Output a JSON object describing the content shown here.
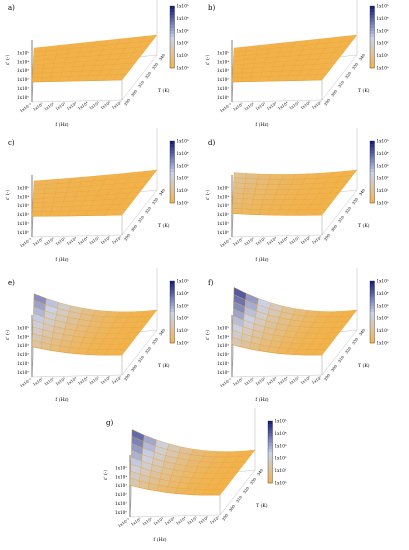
{
  "figure": {
    "palette": {
      "low": "#f2b24a",
      "mid": "#c9d2e8",
      "high": "#1a237e",
      "grid": "#e8a23a",
      "edge": "#555555"
    }
  },
  "chart_data": [
    {
      "type": "surface3d",
      "panel_label": "a)",
      "xlabel": "f (Hz)",
      "ylabel": "T (K)",
      "zlabel": "ε' (-)",
      "x_ticks": [
        "1x10⁻¹",
        "1x10⁰",
        "1x10¹",
        "1x10²",
        "1x10³",
        "1x10⁴",
        "1x10⁵",
        "1x10⁶",
        "1x10⁷"
      ],
      "y_ticks": [
        "290",
        "300",
        "310",
        "320",
        "330",
        "340"
      ],
      "z_ticks": [
        "1x10⁰",
        "1x10¹",
        "1x10²",
        "1x10³",
        "1x10⁴",
        "1x10⁵"
      ],
      "colorbar_ticks": [
        "1x10⁰",
        "1x10¹",
        "1x10²",
        "1x10³",
        "1x10⁴",
        "1x10⁵"
      ],
      "z_scale": "log",
      "surface_peak_level": 0.0
    },
    {
      "type": "surface3d",
      "panel_label": "b)",
      "xlabel": "f (Hz)",
      "ylabel": "T (K)",
      "zlabel": "ε' (-)",
      "x_ticks": [
        "1x10⁻¹",
        "1x10⁰",
        "1x10¹",
        "1x10²",
        "1x10³",
        "1x10⁴",
        "1x10⁵",
        "1x10⁶",
        "1x10⁷"
      ],
      "y_ticks": [
        "290",
        "300",
        "310",
        "320",
        "330",
        "340"
      ],
      "z_ticks": [
        "1x10⁰",
        "1x10¹",
        "1x10²",
        "1x10³",
        "1x10⁴",
        "1x10⁵"
      ],
      "colorbar_ticks": [
        "1x10⁰",
        "1x10¹",
        "1x10²",
        "1x10³",
        "1x10⁴",
        "1x10⁵"
      ],
      "z_scale": "log",
      "surface_peak_level": 0.0
    },
    {
      "type": "surface3d",
      "panel_label": "c)",
      "xlabel": "f (Hz)",
      "ylabel": "T (K)",
      "zlabel": "ε' (-)",
      "x_ticks": [
        "1x10⁻¹",
        "1x10⁰",
        "1x10¹",
        "1x10²",
        "1x10³",
        "1x10⁴",
        "1x10⁵",
        "1x10⁶",
        "1x10⁷"
      ],
      "y_ticks": [
        "290",
        "300",
        "310",
        "320",
        "330",
        "340"
      ],
      "z_ticks": [
        "1x10⁰",
        "1x10¹",
        "1x10²",
        "1x10³",
        "1x10⁴",
        "1x10⁵"
      ],
      "colorbar_ticks": [
        "1x10⁰",
        "1x10¹",
        "1x10²",
        "1x10³",
        "1x10⁴",
        "1x10⁵"
      ],
      "z_scale": "log",
      "surface_peak_level": 0.05
    },
    {
      "type": "surface3d",
      "panel_label": "d)",
      "xlabel": "f (Hz)",
      "ylabel": "T (K)",
      "zlabel": "ε' (-)",
      "x_ticks": [
        "1x10⁻¹",
        "1x10⁰",
        "1x10¹",
        "1x10²",
        "1x10³",
        "1x10⁴",
        "1x10⁵",
        "1x10⁶",
        "1x10⁷"
      ],
      "y_ticks": [
        "290",
        "300",
        "310",
        "320",
        "330",
        "340"
      ],
      "z_ticks": [
        "1x10⁰",
        "1x10¹",
        "1x10²",
        "1x10³",
        "1x10⁴",
        "1x10⁵"
      ],
      "colorbar_ticks": [
        "1x10⁰",
        "1x10¹",
        "1x10²",
        "1x10³",
        "1x10⁴",
        "1x10⁵"
      ],
      "z_scale": "log",
      "surface_peak_level": 0.25
    },
    {
      "type": "surface3d",
      "panel_label": "e)",
      "xlabel": "f (Hz)",
      "ylabel": "T (K)",
      "zlabel": "ε' (-)",
      "x_ticks": [
        "1x10⁻¹",
        "1x10⁰",
        "1x10¹",
        "1x10²",
        "1x10³",
        "1x10⁴",
        "1x10⁵",
        "1x10⁶",
        "1x10⁷"
      ],
      "y_ticks": [
        "290",
        "300",
        "310",
        "320",
        "330",
        "340"
      ],
      "z_ticks": [
        "1x10⁰",
        "1x10¹",
        "1x10²",
        "1x10³",
        "1x10⁴",
        "1x10⁵"
      ],
      "colorbar_ticks": [
        "1x10⁰",
        "1x10¹",
        "1x10²",
        "1x10³",
        "1x10⁴",
        "1x10⁵"
      ],
      "z_scale": "log",
      "surface_peak_level": 0.7
    },
    {
      "type": "surface3d",
      "panel_label": "f)",
      "xlabel": "f (Hz)",
      "ylabel": "T (K)",
      "zlabel": "ε' (-)",
      "x_ticks": [
        "1x10⁻¹",
        "1x10⁰",
        "1x10¹",
        "1x10²",
        "1x10³",
        "1x10⁴",
        "1x10⁵",
        "1x10⁶",
        "1x10⁷"
      ],
      "y_ticks": [
        "290",
        "300",
        "310",
        "320",
        "330",
        "340"
      ],
      "z_ticks": [
        "1x10⁰",
        "1x10¹",
        "1x10²",
        "1x10³",
        "1x10⁴",
        "1x10⁵"
      ],
      "colorbar_ticks": [
        "1x10⁰",
        "1x10¹",
        "1x10²",
        "1x10³",
        "1x10⁴",
        "1x10⁵"
      ],
      "z_scale": "log",
      "surface_peak_level": 0.85
    },
    {
      "type": "surface3d",
      "panel_label": "g)",
      "xlabel": "f (Hz)",
      "ylabel": "T (K)",
      "zlabel": "ε' (-)",
      "x_ticks": [
        "1x10⁻¹",
        "1x10⁰",
        "1x10¹",
        "1x10²",
        "1x10³",
        "1x10⁴",
        "1x10⁵",
        "1x10⁶",
        "1x10⁷"
      ],
      "y_ticks": [
        "290",
        "300",
        "310",
        "320",
        "330",
        "340"
      ],
      "z_ticks": [
        "1x10⁰",
        "1x10¹",
        "1x10²",
        "1x10³",
        "1x10⁴",
        "1x10⁵"
      ],
      "colorbar_ticks": [
        "1x10⁰",
        "1x10¹",
        "1x10²",
        "1x10³",
        "1x10⁴",
        "1x10⁵"
      ],
      "z_scale": "log",
      "surface_peak_level": 0.8
    }
  ]
}
